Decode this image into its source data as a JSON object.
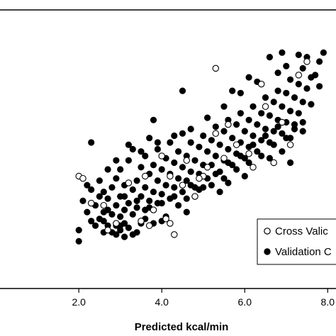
{
  "chart_data": {
    "type": "scatter",
    "xlabel": "Predicted kcal/min",
    "ylabel": "",
    "title": "",
    "xlim": [
      0.1,
      8.2
    ],
    "ylim": [
      0.5,
      12.9
    ],
    "grid": false,
    "legend_placement": "bottom-right",
    "x_ticks": [
      2.0,
      4.0,
      6.0,
      8.0
    ],
    "x_tick_labels": [
      "2.0",
      "4.0",
      "6.0",
      "8.0"
    ],
    "series": [
      {
        "name": "Cross Valic",
        "marker": "open-circle",
        "color": "#000000",
        "points": [
          [
            2.0,
            5.5
          ],
          [
            2.1,
            5.4
          ],
          [
            2.3,
            4.3
          ],
          [
            2.6,
            4.2
          ],
          [
            2.7,
            3.1
          ],
          [
            2.9,
            3.4
          ],
          [
            3.2,
            5.2
          ],
          [
            3.5,
            3.5
          ],
          [
            3.6,
            5.5
          ],
          [
            3.7,
            3.3
          ],
          [
            3.8,
            4.0
          ],
          [
            4.0,
            6.4
          ],
          [
            4.1,
            3.6
          ],
          [
            4.2,
            3.4
          ],
          [
            4.2,
            5.5
          ],
          [
            4.3,
            2.9
          ],
          [
            4.5,
            5.1
          ],
          [
            4.6,
            6.2
          ],
          [
            4.8,
            4.6
          ],
          [
            5.0,
            5.5
          ],
          [
            5.1,
            5.9
          ],
          [
            5.3,
            7.4
          ],
          [
            5.5,
            6.3
          ],
          [
            5.6,
            7.8
          ],
          [
            5.8,
            6.9
          ],
          [
            6.1,
            6.5
          ],
          [
            6.2,
            5.9
          ],
          [
            6.4,
            9.6
          ],
          [
            6.5,
            8.6
          ],
          [
            6.7,
            6.1
          ],
          [
            6.9,
            7.9
          ],
          [
            7.1,
            6.9
          ],
          [
            7.3,
            10.0
          ],
          [
            7.5,
            10.6
          ],
          [
            5.3,
            10.3
          ],
          [
            4.9,
            5.4
          ]
        ]
      },
      {
        "name": "Validation C",
        "marker": "filled-circle",
        "color": "#000000",
        "points": [
          [
            2.0,
            3.1
          ],
          [
            2.1,
            4.4
          ],
          [
            2.2,
            3.9
          ],
          [
            2.3,
            3.5
          ],
          [
            2.3,
            7.0
          ],
          [
            2.4,
            4.2
          ],
          [
            2.5,
            3.6
          ],
          [
            2.5,
            4.6
          ],
          [
            2.6,
            3.9
          ],
          [
            2.6,
            4.8
          ],
          [
            2.7,
            3.3
          ],
          [
            2.7,
            4.5
          ],
          [
            2.8,
            3.8
          ],
          [
            2.8,
            5.0
          ],
          [
            2.9,
            3.3
          ],
          [
            2.9,
            4.2
          ],
          [
            2.9,
            5.4
          ],
          [
            3.0,
            3.7
          ],
          [
            3.0,
            4.6
          ],
          [
            3.0,
            5.8
          ],
          [
            3.1,
            3.4
          ],
          [
            3.1,
            4.0
          ],
          [
            3.1,
            5.1
          ],
          [
            3.2,
            4.3
          ],
          [
            3.2,
            6.2
          ],
          [
            3.3,
            3.8
          ],
          [
            3.3,
            4.9
          ],
          [
            3.3,
            6.7
          ],
          [
            3.4,
            4.1
          ],
          [
            3.4,
            5.3
          ],
          [
            3.5,
            4.6
          ],
          [
            3.5,
            5.9
          ],
          [
            3.6,
            4.0
          ],
          [
            3.6,
            5.0
          ],
          [
            3.6,
            6.4
          ],
          [
            3.7,
            4.4
          ],
          [
            3.7,
            5.6
          ],
          [
            3.7,
            7.2
          ],
          [
            3.8,
            4.8
          ],
          [
            3.8,
            6.0
          ],
          [
            3.9,
            4.3
          ],
          [
            3.9,
            5.3
          ],
          [
            3.9,
            6.7
          ],
          [
            4.0,
            4.7
          ],
          [
            4.0,
            5.8
          ],
          [
            4.1,
            5.1
          ],
          [
            4.1,
            6.3
          ],
          [
            4.2,
            4.5
          ],
          [
            4.2,
            5.6
          ],
          [
            4.2,
            7.0
          ],
          [
            4.3,
            5.0
          ],
          [
            4.3,
            6.1
          ],
          [
            4.4,
            5.4
          ],
          [
            4.4,
            6.6
          ],
          [
            4.5,
            4.8
          ],
          [
            4.5,
            5.9
          ],
          [
            4.5,
            7.4
          ],
          [
            4.6,
            5.3
          ],
          [
            4.6,
            6.4
          ],
          [
            4.7,
            5.7
          ],
          [
            4.7,
            7.0
          ],
          [
            4.8,
            5.0
          ],
          [
            4.8,
            6.2
          ],
          [
            4.9,
            5.6
          ],
          [
            4.9,
            6.8
          ],
          [
            5.0,
            6.0
          ],
          [
            5.0,
            7.3
          ],
          [
            5.1,
            5.4
          ],
          [
            5.1,
            6.6
          ],
          [
            5.2,
            6.0
          ],
          [
            5.2,
            7.1
          ],
          [
            5.3,
            6.4
          ],
          [
            5.3,
            7.7
          ],
          [
            5.4,
            5.7
          ],
          [
            5.4,
            6.9
          ],
          [
            5.5,
            6.2
          ],
          [
            5.5,
            7.5
          ],
          [
            5.6,
            6.7
          ],
          [
            5.6,
            8.0
          ],
          [
            5.7,
            6.0
          ],
          [
            5.7,
            7.2
          ],
          [
            5.8,
            6.5
          ],
          [
            5.8,
            7.8
          ],
          [
            5.9,
            7.0
          ],
          [
            5.9,
            8.3
          ],
          [
            6.0,
            6.3
          ],
          [
            6.0,
            7.5
          ],
          [
            6.1,
            6.8
          ],
          [
            6.1,
            8.0
          ],
          [
            6.2,
            7.3
          ],
          [
            6.2,
            8.6
          ],
          [
            6.3,
            6.6
          ],
          [
            6.3,
            7.8
          ],
          [
            6.4,
            7.1
          ],
          [
            6.4,
            8.3
          ],
          [
            6.5,
            7.6
          ],
          [
            6.5,
            9.0
          ],
          [
            6.6,
            7.0
          ],
          [
            6.6,
            8.2
          ],
          [
            6.7,
            7.5
          ],
          [
            6.7,
            8.8
          ],
          [
            6.8,
            8.0
          ],
          [
            6.8,
            9.3
          ],
          [
            6.9,
            7.4
          ],
          [
            6.9,
            8.6
          ],
          [
            7.0,
            7.9
          ],
          [
            7.0,
            9.2
          ],
          [
            7.1,
            8.4
          ],
          [
            7.1,
            9.8
          ],
          [
            7.2,
            7.8
          ],
          [
            7.2,
            9.0
          ],
          [
            7.3,
            8.3
          ],
          [
            7.3,
            9.6
          ],
          [
            7.4,
            8.8
          ],
          [
            7.4,
            10.3
          ],
          [
            7.5,
            9.4
          ],
          [
            7.5,
            10.8
          ],
          [
            7.6,
            8.7
          ],
          [
            7.7,
            10.0
          ],
          [
            7.8,
            10.6
          ],
          [
            7.9,
            11.0
          ],
          [
            7.0,
            10.4
          ],
          [
            6.8,
            10.1
          ],
          [
            6.3,
            9.7
          ],
          [
            6.9,
            11.0
          ],
          [
            7.3,
            10.9
          ],
          [
            5.9,
            9.2
          ],
          [
            5.5,
            8.6
          ],
          [
            5.1,
            8.1
          ],
          [
            4.7,
            7.6
          ],
          [
            4.3,
            7.3
          ],
          [
            3.9,
            7.0
          ],
          [
            3.5,
            6.6
          ],
          [
            3.2,
            6.9
          ],
          [
            2.9,
            6.2
          ],
          [
            2.7,
            5.8
          ],
          [
            2.5,
            5.3
          ],
          [
            2.2,
            5.1
          ],
          [
            2.4,
            3.3
          ],
          [
            2.6,
            3.0
          ],
          [
            2.8,
            3.0
          ],
          [
            3.0,
            3.1
          ],
          [
            3.2,
            3.2
          ],
          [
            3.4,
            3.0
          ],
          [
            3.6,
            3.6
          ],
          [
            3.8,
            3.4
          ],
          [
            4.1,
            3.7
          ],
          [
            4.4,
            4.2
          ],
          [
            4.6,
            4.5
          ],
          [
            4.9,
            4.9
          ],
          [
            5.2,
            5.1
          ],
          [
            5.5,
            5.4
          ],
          [
            5.8,
            5.8
          ],
          [
            6.1,
            6.1
          ],
          [
            6.4,
            6.4
          ],
          [
            6.7,
            6.9
          ],
          [
            7.0,
            7.2
          ],
          [
            7.2,
            7.6
          ],
          [
            7.4,
            7.5
          ],
          [
            6.6,
            6.3
          ],
          [
            6.0,
            5.5
          ],
          [
            5.4,
            4.8
          ],
          [
            4.6,
            3.9
          ],
          [
            4.0,
            3.5
          ],
          [
            3.5,
            3.4
          ],
          [
            3.0,
            3.3
          ],
          [
            2.6,
            3.5
          ],
          [
            2.0,
            2.6
          ],
          [
            2.9,
            2.9
          ],
          [
            3.1,
            2.8
          ],
          [
            3.3,
            2.9
          ],
          [
            5.6,
            5.2
          ],
          [
            6.9,
            6.6
          ],
          [
            7.1,
            6.1
          ],
          [
            5.7,
            9.3
          ],
          [
            6.1,
            9.9
          ],
          [
            6.6,
            10.8
          ],
          [
            4.5,
            9.3
          ],
          [
            3.8,
            8.0
          ],
          [
            2.3,
            4.9
          ],
          [
            2.7,
            4.0
          ],
          [
            3.1,
            4.6
          ],
          [
            3.4,
            4.4
          ],
          [
            3.7,
            4.1
          ],
          [
            4.0,
            4.3
          ],
          [
            4.3,
            4.6
          ],
          [
            4.7,
            5.1
          ],
          [
            5.0,
            5.0
          ],
          [
            5.3,
            5.6
          ],
          [
            5.6,
            6.1
          ],
          [
            5.9,
            6.4
          ],
          [
            6.2,
            6.9
          ],
          [
            6.5,
            7.3
          ],
          [
            6.8,
            7.7
          ],
          [
            7.1,
            7.2
          ],
          [
            7.4,
            7.9
          ],
          [
            7.6,
            9.9
          ],
          [
            7.8,
            9.5
          ]
        ]
      }
    ],
    "legend": [
      {
        "label": "Cross Valic",
        "marker": "open-circle"
      },
      {
        "label": "Validation C",
        "marker": "filled-circle"
      }
    ]
  }
}
